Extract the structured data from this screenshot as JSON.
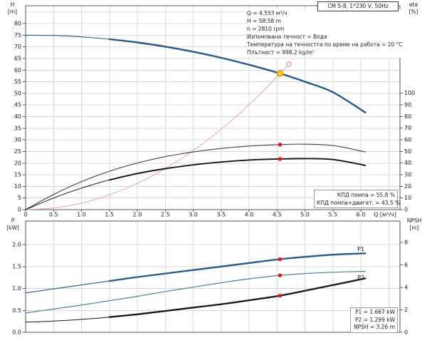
{
  "title_box": {
    "text": "CM 5-8, 1*230 V, 50Hz"
  },
  "info_block": {
    "lines": [
      "Q = 4.553 м³/ч",
      "H = 58.58 m",
      "n = 2810 rpm",
      "Изпомпвана течност = Вода",
      "Температура на течността по време на работа = 20 °C",
      "Плътност = 998.2 kg/m³"
    ]
  },
  "kpd_box": {
    "line1": "КПД помпа = 55.8 %",
    "line2": "КПД помпа+двигат. = 43.5 %"
  },
  "result_box": {
    "line1": "P1 = 1.667 kW",
    "line2": "P2 = 1.299 kW",
    "line3": "NPSH = 3.26 m"
  },
  "axis_corner_labels": {
    "h": "H",
    "h_unit": "[m]",
    "eta": "eta",
    "eta_unit": "[%]",
    "p": "P",
    "p_unit": "[kW]",
    "npsh": "NPSH",
    "npsh_unit": "[m]"
  },
  "colors": {
    "curve_blue": "#27588c",
    "curve_blue_light": "#4a7cab",
    "system_red": "#f2a3a3",
    "eta_gray": "#3f3f3f",
    "black": "#161616",
    "marker_red": "#e81313",
    "duty_yellow": "#ffd400",
    "duty_ring": "#e88600",
    "requested_ring": "#f0948a",
    "grid": "#d9d9d9",
    "frame": "#555555",
    "text": "#1c1c1c"
  },
  "chart_data": [
    {
      "id": "top",
      "type": "line",
      "title": "CM 5-8, 1*230 V, 50Hz",
      "x_axis": {
        "label": "Q [м³/ч]",
        "min": 0,
        "max": 6.7,
        "ticks": [
          0,
          0.5,
          1,
          1.5,
          2,
          2.5,
          3,
          3.5,
          4,
          4.5,
          5,
          5.5,
          6
        ],
        "tick_labels": [
          "0",
          "0.5",
          "1.0",
          "1.5",
          "2.0",
          "2.5",
          "3.0",
          "3.5",
          "4.0",
          "4.5",
          "5.0",
          "5.5",
          "6.0"
        ],
        "grid": [
          0.5,
          1,
          1.5,
          2,
          2.5,
          3,
          3.5,
          4,
          4.5,
          5,
          5.5,
          6,
          6.5
        ],
        "show_tick_labels": true
      },
      "y_left": {
        "label": "H [m]",
        "min": 0,
        "max": 87.7,
        "ticks": [
          0,
          5,
          10,
          15,
          20,
          25,
          30,
          35,
          40,
          45,
          50,
          55,
          60,
          65,
          70,
          75,
          80
        ],
        "grid": [
          5,
          10,
          15,
          20,
          25,
          30,
          35,
          40,
          45,
          50,
          55,
          60,
          65,
          70,
          75,
          80,
          85
        ]
      },
      "y_right": {
        "label": "eta [%]",
        "min": 0,
        "max": 175,
        "ticks": [
          0,
          10,
          20,
          30,
          40,
          50,
          60,
          70,
          80,
          90,
          100
        ],
        "grid": []
      },
      "series": [
        {
          "name": "system-curve",
          "axis": "left",
          "color": "system_red",
          "width": 1,
          "x": [
            0,
            0.5,
            1,
            1.5,
            2,
            2.5,
            3,
            3.5,
            4,
            4.3,
            4.553,
            4.68
          ],
          "y": [
            0,
            0.7,
            2.8,
            6.4,
            11.3,
            17.7,
            25.4,
            34.6,
            45.2,
            52.2,
            58.58,
            61.9
          ]
        },
        {
          "name": "eta-pump-curve",
          "axis": "right",
          "color": "eta_gray",
          "width": 1.1,
          "x": [
            0,
            0.5,
            1,
            1.5,
            2,
            2.5,
            3,
            3.5,
            4,
            4.553,
            5,
            5.5,
            6.08
          ],
          "y": [
            0,
            13,
            24,
            33,
            40,
            45.5,
            49.5,
            52.5,
            54.6,
            55.8,
            56.2,
            55,
            49.5
          ]
        },
        {
          "name": "eta-pump-motor-curve",
          "axis": "right",
          "color": "black",
          "width": 1.9,
          "thin_width": 1,
          "thick_from": 1.2,
          "x": [
            0,
            0.5,
            1,
            1.5,
            2,
            2.5,
            3,
            3.5,
            4,
            4.553,
            5,
            5.5,
            6.08
          ],
          "y": [
            0,
            10,
            18.5,
            25.5,
            31,
            35.2,
            38.4,
            40.9,
            42.6,
            43.5,
            43.8,
            43,
            38
          ]
        },
        {
          "name": "hq-curve",
          "axis": "left",
          "color": "curve_blue",
          "width": 2.4,
          "thin_width": 1.1,
          "thick_from": 1.2,
          "x": [
            0,
            0.5,
            1,
            1.5,
            2,
            2.5,
            3,
            3.5,
            4,
            4.553,
            5,
            5.5,
            6.08
          ],
          "y": [
            75,
            74.9,
            74.3,
            73.3,
            71.9,
            70.1,
            67.9,
            65.3,
            62.3,
            58.58,
            55,
            50.5,
            41.8
          ]
        }
      ],
      "markers": [
        {
          "name": "requested-duty-marker",
          "q": 4.71,
          "v": 62.6,
          "axis": "left",
          "r": 3.2,
          "fill": "#ffffff",
          "stroke": "requested_ring"
        },
        {
          "name": "duty-point-marker",
          "q": 4.553,
          "v": 58.58,
          "axis": "left",
          "r": 4,
          "fill": "duty_yellow",
          "stroke": "duty_ring"
        },
        {
          "name": "eta-pump-point",
          "q": 4.553,
          "v": 55.8,
          "axis": "right",
          "r": 2.7,
          "fill": "marker_red"
        },
        {
          "name": "eta-pump-motor-point",
          "q": 4.553,
          "v": 43.5,
          "axis": "right",
          "r": 2.7,
          "fill": "marker_red"
        }
      ],
      "annotations": []
    },
    {
      "id": "bottom",
      "type": "line",
      "title": "",
      "x_axis": {
        "label": "",
        "min": 0,
        "max": 6.7,
        "ticks": [],
        "tick_labels": [],
        "grid": [
          0.5,
          1,
          1.5,
          2,
          2.5,
          3,
          3.5,
          4,
          4.5,
          5,
          5.5,
          6,
          6.5
        ],
        "show_tick_labels": false
      },
      "y_left": {
        "label": "P [kW]",
        "min": 0,
        "max": 2.537,
        "ticks": [
          0,
          0.5,
          1,
          1.5,
          2
        ],
        "tick_labels": [
          "0.0",
          "0.5",
          "1.0",
          "1.5",
          "2.0"
        ],
        "grid": [
          0.5,
          1,
          1.5,
          2
        ]
      },
      "y_right": {
        "label": "NPSH [m]",
        "min": 0,
        "max": 9.9,
        "ticks": [
          0,
          2,
          4,
          6,
          8
        ],
        "grid": []
      },
      "series": [
        {
          "name": "p2-curve",
          "axis": "left",
          "color": "curve_blue_light",
          "width": 1.2,
          "x": [
            0,
            0.5,
            1,
            1.5,
            2,
            2.5,
            3,
            3.5,
            4,
            4.553,
            5,
            5.5,
            6.08
          ],
          "y": [
            0.44,
            0.53,
            0.62,
            0.72,
            0.82,
            0.93,
            1.03,
            1.13,
            1.22,
            1.299,
            1.34,
            1.37,
            1.39
          ]
        },
        {
          "name": "npsh-curve",
          "axis": "right",
          "color": "black",
          "width": 2.3,
          "thin_width": 1,
          "thick_from": 1.2,
          "x": [
            0,
            0.5,
            1,
            1.5,
            2,
            2.5,
            3,
            3.5,
            4,
            4.553,
            5,
            5.5,
            6.08
          ],
          "y": [
            0.9,
            1.0,
            1.15,
            1.35,
            1.6,
            1.9,
            2.2,
            2.5,
            2.85,
            3.26,
            3.7,
            4.2,
            4.8
          ]
        },
        {
          "name": "p1-curve",
          "axis": "left",
          "color": "curve_blue",
          "width": 2.3,
          "thin_width": 1.1,
          "thick_from": 1.2,
          "x": [
            0,
            0.5,
            1,
            1.5,
            2,
            2.5,
            3,
            3.5,
            4,
            4.553,
            5,
            5.5,
            6.08
          ],
          "y": [
            0.9,
            0.99,
            1.08,
            1.17,
            1.26,
            1.34,
            1.42,
            1.5,
            1.58,
            1.667,
            1.72,
            1.77,
            1.8
          ]
        }
      ],
      "markers": [
        {
          "name": "p1-point",
          "q": 4.553,
          "v": 1.667,
          "axis": "left",
          "r": 2.7,
          "fill": "marker_red"
        },
        {
          "name": "p2-point",
          "q": 4.553,
          "v": 1.299,
          "axis": "left",
          "r": 2.7,
          "fill": "marker_red"
        },
        {
          "name": "npsh-point",
          "q": 4.553,
          "v": 3.26,
          "axis": "right",
          "r": 2.7,
          "fill": "marker_red"
        }
      ],
      "annotations": [
        {
          "text": "P1",
          "q": 6.0,
          "v": 1.85,
          "axis": "left",
          "color": "curve_blue"
        },
        {
          "text": "P2",
          "q": 6.0,
          "v": 1.2,
          "axis": "left",
          "color": "curve_blue_light"
        }
      ]
    }
  ]
}
